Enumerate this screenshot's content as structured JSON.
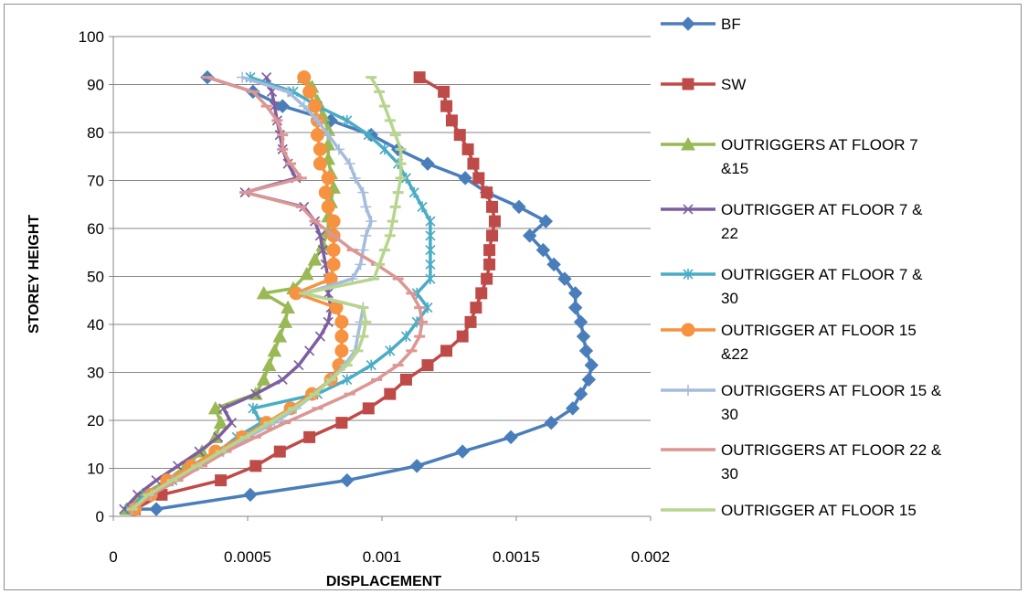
{
  "chart_data": {
    "type": "line",
    "title": "",
    "xlabel": "DISPLACEMENT",
    "ylabel": "STOREY HEIGHT",
    "xlim": [
      0,
      0.002
    ],
    "ylim": [
      0,
      100
    ],
    "x_ticks": [
      "0",
      "0.0005",
      "0.001",
      "0.0015",
      "0.002"
    ],
    "y_ticks": [
      "0",
      "10",
      "20",
      "30",
      "40",
      "50",
      "60",
      "70",
      "80",
      "90",
      "100"
    ],
    "grid": "horizontal major gridlines",
    "legend_position": "right",
    "series": [
      {
        "name": "BF",
        "color": "#4a7ebb",
        "marker": "diamond",
        "points": [
          [
            7e-05,
            1.5
          ],
          [
            0.00016,
            1.5
          ],
          [
            0.00051,
            4.5
          ],
          [
            0.00087,
            7.5
          ],
          [
            0.00113,
            10.5
          ],
          [
            0.0013,
            13.5
          ],
          [
            0.00148,
            16.5
          ],
          [
            0.00163,
            19.5
          ],
          [
            0.00171,
            22.5
          ],
          [
            0.00174,
            25.5
          ],
          [
            0.00177,
            28.5
          ],
          [
            0.00178,
            31.5
          ],
          [
            0.00176,
            34.5
          ],
          [
            0.00175,
            37.5
          ],
          [
            0.00174,
            40.5
          ],
          [
            0.00172,
            43.5
          ],
          [
            0.00172,
            46.5
          ],
          [
            0.00168,
            49.5
          ],
          [
            0.00164,
            52.5
          ],
          [
            0.0016,
            55.5
          ],
          [
            0.00155,
            58.5
          ],
          [
            0.00161,
            61.5
          ],
          [
            0.00151,
            64.5
          ],
          [
            0.00139,
            67.5
          ],
          [
            0.00131,
            70.5
          ],
          [
            0.00117,
            73.5
          ],
          [
            0.00106,
            76.5
          ],
          [
            0.00096,
            79.5
          ],
          [
            0.00081,
            82.5
          ],
          [
            0.00063,
            85.5
          ],
          [
            0.00052,
            88.5
          ],
          [
            0.00035,
            91.5
          ]
        ]
      },
      {
        "name": "SW",
        "color": "#be4b48",
        "marker": "square",
        "points": [
          [
            8e-05,
            1.5
          ],
          [
            0.00018,
            4.5
          ],
          [
            0.0004,
            7.5
          ],
          [
            0.00053,
            10.5
          ],
          [
            0.00062,
            13.5
          ],
          [
            0.00073,
            16.5
          ],
          [
            0.00085,
            19.5
          ],
          [
            0.00095,
            22.5
          ],
          [
            0.00103,
            25.5
          ],
          [
            0.00109,
            28.5
          ],
          [
            0.00117,
            31.5
          ],
          [
            0.00124,
            34.5
          ],
          [
            0.0013,
            37.5
          ],
          [
            0.00133,
            40.5
          ],
          [
            0.00135,
            43.5
          ],
          [
            0.00137,
            46.5
          ],
          [
            0.00139,
            49.5
          ],
          [
            0.0014,
            52.5
          ],
          [
            0.0014,
            55.5
          ],
          [
            0.00141,
            58.5
          ],
          [
            0.00142,
            61.5
          ],
          [
            0.00141,
            64.5
          ],
          [
            0.00139,
            67.5
          ],
          [
            0.00136,
            70.5
          ],
          [
            0.00134,
            73.5
          ],
          [
            0.00132,
            76.5
          ],
          [
            0.00129,
            79.5
          ],
          [
            0.00126,
            82.5
          ],
          [
            0.00124,
            85.5
          ],
          [
            0.00123,
            88.5
          ],
          [
            0.00114,
            91.5
          ]
        ]
      },
      {
        "name": "OUTRIGGERS AT FLOOR 7 &15",
        "color": "#98b954",
        "marker": "triangle",
        "points": [
          [
            5e-05,
            1.5
          ],
          [
            0.00011,
            4.5
          ],
          [
            0.0002,
            7.5
          ],
          [
            0.00027,
            10.5
          ],
          [
            0.00033,
            13.5
          ],
          [
            0.00038,
            16.5
          ],
          [
            0.0004,
            19.5
          ],
          [
            0.00038,
            22.5
          ],
          [
            0.00053,
            25.5
          ],
          [
            0.00056,
            28.5
          ],
          [
            0.00058,
            31.5
          ],
          [
            0.0006,
            34.5
          ],
          [
            0.00062,
            37.5
          ],
          [
            0.00064,
            40.5
          ],
          [
            0.00065,
            43.5
          ],
          [
            0.00056,
            46.5
          ],
          [
            0.00067,
            47.5
          ],
          [
            0.00072,
            50.5
          ],
          [
            0.00075,
            53.5
          ],
          [
            0.00078,
            56.5
          ],
          [
            0.0008,
            59.5
          ],
          [
            0.0008,
            62.5
          ],
          [
            0.00081,
            65.5
          ],
          [
            0.00082,
            68.5
          ],
          [
            0.00081,
            71.5
          ],
          [
            0.0008,
            74.5
          ],
          [
            0.0008,
            77.5
          ],
          [
            0.0008,
            80.5
          ],
          [
            0.00078,
            83.5
          ],
          [
            0.00076,
            86.5
          ],
          [
            0.00074,
            89.5
          ],
          [
            0.00071,
            91.5
          ]
        ]
      },
      {
        "name": "OUTRIGGER AT FLOOR 7 & 22",
        "color": "#7d5fa0",
        "marker": "cross",
        "points": [
          [
            4e-05,
            1.5
          ],
          [
            9e-05,
            4.5
          ],
          [
            0.00016,
            7.5
          ],
          [
            0.00024,
            10.5
          ],
          [
            0.00032,
            13.5
          ],
          [
            0.00039,
            16.5
          ],
          [
            0.00044,
            19.5
          ],
          [
            0.00041,
            22.5
          ],
          [
            0.00053,
            25.5
          ],
          [
            0.00063,
            28.5
          ],
          [
            0.00069,
            31.5
          ],
          [
            0.00073,
            34.5
          ],
          [
            0.00077,
            37.5
          ],
          [
            0.0008,
            40.5
          ],
          [
            0.00081,
            43.5
          ],
          [
            0.0008,
            46.5
          ],
          [
            0.0008,
            49.5
          ],
          [
            0.00079,
            52.5
          ],
          [
            0.00078,
            55.5
          ],
          [
            0.00077,
            58.5
          ],
          [
            0.00075,
            61.5
          ],
          [
            0.00071,
            64.5
          ],
          [
            0.00049,
            67.5
          ],
          [
            0.00068,
            70.5
          ],
          [
            0.00065,
            73.5
          ],
          [
            0.00063,
            76.5
          ],
          [
            0.00062,
            79.5
          ],
          [
            0.00061,
            82.5
          ],
          [
            0.0006,
            85.5
          ],
          [
            0.00059,
            88.5
          ],
          [
            0.00057,
            91.5
          ]
        ]
      },
      {
        "name": "OUTRIGGER AT FLOOR 7 & 30",
        "color": "#4aacc5",
        "marker": "asterisk",
        "points": [
          [
            6e-05,
            1.5
          ],
          [
            0.00012,
            4.5
          ],
          [
            0.00022,
            7.5
          ],
          [
            0.0003,
            10.5
          ],
          [
            0.00039,
            13.5
          ],
          [
            0.00046,
            16.5
          ],
          [
            0.00055,
            19.5
          ],
          [
            0.00052,
            22.5
          ],
          [
            0.00076,
            25.5
          ],
          [
            0.00087,
            28.5
          ],
          [
            0.00096,
            31.5
          ],
          [
            0.00103,
            34.5
          ],
          [
            0.00109,
            37.5
          ],
          [
            0.00113,
            40.5
          ],
          [
            0.00117,
            43.5
          ],
          [
            0.00113,
            46.5
          ],
          [
            0.00118,
            49.5
          ],
          [
            0.00118,
            52.5
          ],
          [
            0.00118,
            55.5
          ],
          [
            0.00118,
            58.5
          ],
          [
            0.00118,
            61.5
          ],
          [
            0.00115,
            64.5
          ],
          [
            0.00112,
            67.5
          ],
          [
            0.00109,
            70.5
          ],
          [
            0.00106,
            73.5
          ],
          [
            0.00101,
            76.5
          ],
          [
            0.00095,
            79.5
          ],
          [
            0.00087,
            82.5
          ],
          [
            0.00076,
            85.5
          ],
          [
            0.00067,
            88.5
          ],
          [
            0.00051,
            91.5
          ]
        ]
      },
      {
        "name": "OUTRIGGER AT FLOOR 15 &22",
        "color": "#f69240",
        "marker": "circle",
        "points": [
          [
            8e-05,
            1.5
          ],
          [
            0.00014,
            4.5
          ],
          [
            0.0002,
            7.5
          ],
          [
            0.00029,
            10.5
          ],
          [
            0.00038,
            13.5
          ],
          [
            0.00048,
            16.5
          ],
          [
            0.00057,
            19.5
          ],
          [
            0.00066,
            22.5
          ],
          [
            0.00074,
            25.5
          ],
          [
            0.00081,
            28.5
          ],
          [
            0.00084,
            31.5
          ],
          [
            0.00085,
            34.5
          ],
          [
            0.00085,
            37.5
          ],
          [
            0.00085,
            40.5
          ],
          [
            0.00083,
            43.5
          ],
          [
            0.00068,
            46.5
          ],
          [
            0.00081,
            49.5
          ],
          [
            0.00082,
            52.5
          ],
          [
            0.00082,
            55.5
          ],
          [
            0.00082,
            58.5
          ],
          [
            0.00082,
            61.5
          ],
          [
            0.0008,
            64.5
          ],
          [
            0.00079,
            67.5
          ],
          [
            0.0008,
            70.5
          ],
          [
            0.00077,
            73.5
          ],
          [
            0.00077,
            76.5
          ],
          [
            0.00076,
            79.5
          ],
          [
            0.00076,
            82.5
          ],
          [
            0.00075,
            85.5
          ],
          [
            0.00073,
            88.5
          ],
          [
            0.00071,
            91.5
          ]
        ]
      },
      {
        "name": "OUTRIGGERS AT FLOOR 15 & 30",
        "color": "#a5bcdd",
        "marker": "plus",
        "points": [
          [
            7e-05,
            1.5
          ],
          [
            0.00014,
            4.5
          ],
          [
            0.00022,
            7.5
          ],
          [
            0.00031,
            10.5
          ],
          [
            0.00041,
            13.5
          ],
          [
            0.0005,
            16.5
          ],
          [
            0.0006,
            19.5
          ],
          [
            0.00068,
            22.5
          ],
          [
            0.00075,
            25.5
          ],
          [
            0.00081,
            28.5
          ],
          [
            0.00086,
            31.5
          ],
          [
            0.0009,
            34.5
          ],
          [
            0.00091,
            37.5
          ],
          [
            0.00092,
            40.5
          ],
          [
            0.00093,
            43.5
          ],
          [
            0.00071,
            46.5
          ],
          [
            0.00089,
            49.5
          ],
          [
            0.00092,
            52.5
          ],
          [
            0.00093,
            55.5
          ],
          [
            0.00094,
            58.5
          ],
          [
            0.00096,
            61.5
          ],
          [
            0.00094,
            64.5
          ],
          [
            0.00093,
            67.5
          ],
          [
            0.0009,
            70.5
          ],
          [
            0.00088,
            73.5
          ],
          [
            0.00084,
            76.5
          ],
          [
            0.0008,
            79.5
          ],
          [
            0.00076,
            82.5
          ],
          [
            0.00071,
            85.5
          ],
          [
            0.00065,
            88.5
          ],
          [
            0.00048,
            91.5
          ]
        ]
      },
      {
        "name": "OUTRIGGERS AT FLOOR 22 & 30",
        "color": "#dc9694",
        "marker": "dash",
        "points": [
          [
            7e-05,
            1.5
          ],
          [
            0.00014,
            4.5
          ],
          [
            0.00024,
            7.5
          ],
          [
            0.00033,
            10.5
          ],
          [
            0.00042,
            13.5
          ],
          [
            0.00053,
            16.5
          ],
          [
            0.00064,
            19.5
          ],
          [
            0.00076,
            22.5
          ],
          [
            0.00088,
            25.5
          ],
          [
            0.00098,
            28.5
          ],
          [
            0.00106,
            31.5
          ],
          [
            0.00111,
            34.5
          ],
          [
            0.00114,
            37.5
          ],
          [
            0.00115,
            40.5
          ],
          [
            0.00114,
            43.5
          ],
          [
            0.00111,
            46.5
          ],
          [
            0.00106,
            49.5
          ],
          [
            0.00098,
            52.5
          ],
          [
            0.00089,
            55.5
          ],
          [
            0.00082,
            58.5
          ],
          [
            0.00075,
            61.5
          ],
          [
            0.0007,
            64.5
          ],
          [
            0.00049,
            67.5
          ],
          [
            0.0007,
            70.5
          ],
          [
            0.00066,
            73.5
          ],
          [
            0.00063,
            76.5
          ],
          [
            0.00063,
            79.5
          ],
          [
            0.00061,
            82.5
          ],
          [
            0.00057,
            85.5
          ],
          [
            0.00052,
            88.5
          ],
          [
            0.00035,
            91.5
          ]
        ]
      },
      {
        "name": "OUTRIGGER AT FLOOR 15",
        "color": "#b8d590",
        "marker": "dash",
        "points": [
          [
            7e-05,
            1.5
          ],
          [
            0.00013,
            4.5
          ],
          [
            0.00022,
            7.5
          ],
          [
            0.00031,
            10.5
          ],
          [
            0.0004,
            13.5
          ],
          [
            0.00049,
            16.5
          ],
          [
            0.00058,
            19.5
          ],
          [
            0.00067,
            22.5
          ],
          [
            0.00075,
            25.5
          ],
          [
            0.00081,
            28.5
          ],
          [
            0.00087,
            31.5
          ],
          [
            0.00091,
            34.5
          ],
          [
            0.00093,
            37.5
          ],
          [
            0.00094,
            40.5
          ],
          [
            0.00093,
            43.5
          ],
          [
            0.00071,
            46.5
          ],
          [
            0.00097,
            49.5
          ],
          [
            0.00099,
            52.5
          ],
          [
            0.00101,
            55.5
          ],
          [
            0.00103,
            58.5
          ],
          [
            0.00104,
            61.5
          ],
          [
            0.00105,
            64.5
          ],
          [
            0.00106,
            67.5
          ],
          [
            0.00107,
            70.5
          ],
          [
            0.00107,
            73.5
          ],
          [
            0.00107,
            76.5
          ],
          [
            0.00105,
            79.5
          ],
          [
            0.00103,
            82.5
          ],
          [
            0.00101,
            85.5
          ],
          [
            0.00099,
            88.5
          ],
          [
            0.00096,
            91.5
          ]
        ]
      }
    ]
  }
}
